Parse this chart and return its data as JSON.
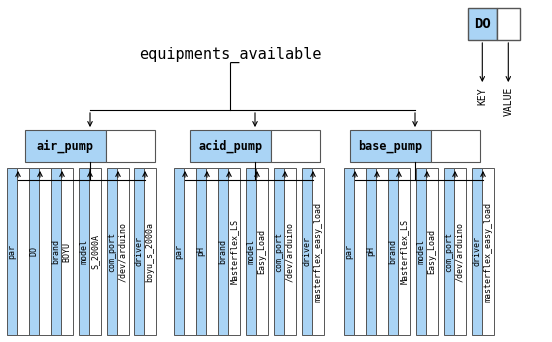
{
  "title": "equipments_available",
  "bg_color": "#ffffff",
  "box_blue": "#aad4f5",
  "box_white": "#ffffff",
  "box_border": "#555555",
  "text_color": "#000000",
  "level1_nodes": [
    "air_pump",
    "acid_pump",
    "base_pump"
  ],
  "air_pump_children": [
    [
      "par",
      ""
    ],
    [
      "DO",
      ""
    ],
    [
      "brand",
      "BOYU"
    ],
    [
      "model",
      "S_2000A"
    ],
    [
      "com_port",
      "/dev/arduino"
    ],
    [
      "driver",
      "boyu_s_2000a"
    ]
  ],
  "acid_pump_children": [
    [
      "par",
      ""
    ],
    [
      "pH",
      ""
    ],
    [
      "brand",
      "Masterflex_LS"
    ],
    [
      "model",
      "Easy_Load"
    ],
    [
      "com_port",
      "/dev/arduino"
    ],
    [
      "driver",
      "masterflex_easy_load"
    ]
  ],
  "base_pump_children": [
    [
      "par",
      ""
    ],
    [
      "pH",
      ""
    ],
    [
      "brand",
      "Masterflex_LS"
    ],
    [
      "model",
      "Easy_Load"
    ],
    [
      "com_port",
      "/dev/arduino"
    ],
    [
      "driver",
      "masterflex_easy_load"
    ]
  ]
}
